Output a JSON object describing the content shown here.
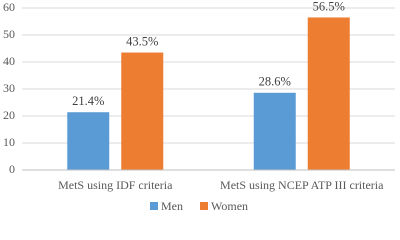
{
  "chart_data": {
    "type": "bar",
    "categories": [
      "MetS using IDF criteria",
      "MetS using NCEP ATP III criteria"
    ],
    "series": [
      {
        "name": "Men",
        "color": "#5b9bd5",
        "values": [
          21.4,
          28.6
        ],
        "value_labels": [
          "21.4%",
          "28.6%"
        ]
      },
      {
        "name": "Women",
        "color": "#ed7d31",
        "values": [
          43.5,
          56.5
        ],
        "value_labels": [
          "43.5%",
          "56.5%"
        ]
      }
    ],
    "ylim": [
      0,
      60
    ],
    "yticks": [
      0,
      10,
      20,
      30,
      40,
      50,
      60
    ],
    "grid": true,
    "legend": "bottom"
  }
}
